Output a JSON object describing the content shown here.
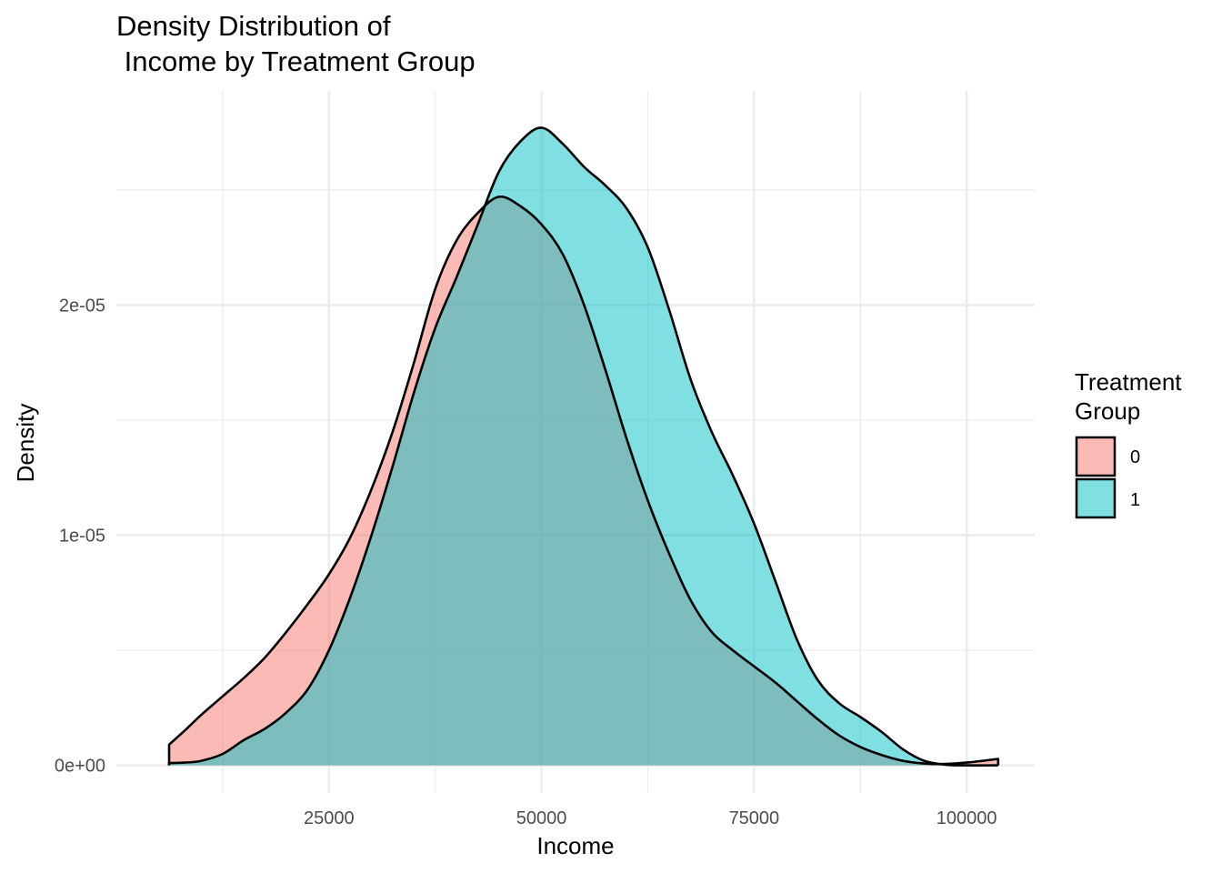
{
  "chart_data": {
    "type": "area",
    "title_lines": [
      "Density Distribution of",
      " Income by Treatment Group"
    ],
    "xlabel": "Income",
    "ylabel": "Density",
    "xlim": [
      0,
      108000
    ],
    "ylim": [
      -1.2e-06,
      2.93e-05
    ],
    "x_ticks": [
      {
        "value": 25000,
        "label": "25000"
      },
      {
        "value": 50000,
        "label": "50000"
      },
      {
        "value": 75000,
        "label": "75000"
      },
      {
        "value": 100000,
        "label": "100000"
      }
    ],
    "y_ticks": [
      {
        "value": 0,
        "label": "0e+00"
      },
      {
        "value": 1e-05,
        "label": "1e-05"
      },
      {
        "value": 2e-05,
        "label": "2e-05"
      }
    ],
    "grid": true,
    "legend": {
      "title_lines": [
        "Treatment",
        "Group"
      ],
      "placement": "right",
      "entries": [
        {
          "label": "0",
          "color": "#F8766D"
        },
        {
          "label": "1",
          "color": "#00BFC4"
        }
      ]
    },
    "fill_alpha": 0.5,
    "series": [
      {
        "name": "0",
        "color": "#F8766D",
        "points": [
          [
            6200,
            9e-07
          ],
          [
            8000,
            1.5e-06
          ],
          [
            10000,
            2.2e-06
          ],
          [
            12500,
            3e-06
          ],
          [
            15000,
            3.8e-06
          ],
          [
            17500,
            4.7e-06
          ],
          [
            20000,
            5.8e-06
          ],
          [
            22500,
            7e-06
          ],
          [
            25000,
            8.3e-06
          ],
          [
            27500,
            9.9e-06
          ],
          [
            30000,
            1.2e-05
          ],
          [
            32500,
            1.45e-05
          ],
          [
            35000,
            1.75e-05
          ],
          [
            37500,
            2.07e-05
          ],
          [
            40000,
            2.28e-05
          ],
          [
            42500,
            2.4e-05
          ],
          [
            45000,
            2.47e-05
          ],
          [
            47500,
            2.43e-05
          ],
          [
            50000,
            2.35e-05
          ],
          [
            52500,
            2.22e-05
          ],
          [
            55000,
            2e-05
          ],
          [
            57500,
            1.72e-05
          ],
          [
            60000,
            1.42e-05
          ],
          [
            62500,
            1.15e-05
          ],
          [
            65000,
            9.2e-06
          ],
          [
            67500,
            7.2e-06
          ],
          [
            70000,
            5.8e-06
          ],
          [
            72500,
            5e-06
          ],
          [
            75000,
            4.3e-06
          ],
          [
            77500,
            3.6e-06
          ],
          [
            80000,
            2.8e-06
          ],
          [
            82500,
            2e-06
          ],
          [
            85000,
            1.3e-06
          ],
          [
            87500,
            8e-07
          ],
          [
            90000,
            4.5e-07
          ],
          [
            92500,
            2e-07
          ],
          [
            95000,
            8e-08
          ],
          [
            97500,
            6e-08
          ],
          [
            100000,
            1.2e-07
          ],
          [
            103700,
            2.8e-07
          ]
        ]
      },
      {
        "name": "1",
        "color": "#00BFC4",
        "points": [
          [
            6200,
            1e-07
          ],
          [
            8000,
            1.2e-07
          ],
          [
            10000,
            2e-07
          ],
          [
            12500,
            5e-07
          ],
          [
            15000,
            1.1e-06
          ],
          [
            17500,
            1.6e-06
          ],
          [
            20000,
            2.3e-06
          ],
          [
            22500,
            3.3e-06
          ],
          [
            25000,
            5e-06
          ],
          [
            27500,
            7.3e-06
          ],
          [
            30000,
            1e-05
          ],
          [
            32500,
            1.3e-05
          ],
          [
            35000,
            1.62e-05
          ],
          [
            37500,
            1.9e-05
          ],
          [
            40000,
            2.12e-05
          ],
          [
            42500,
            2.35e-05
          ],
          [
            45000,
            2.58e-05
          ],
          [
            47500,
            2.71e-05
          ],
          [
            50000,
            2.77e-05
          ],
          [
            52500,
            2.7e-05
          ],
          [
            55000,
            2.6e-05
          ],
          [
            57500,
            2.52e-05
          ],
          [
            60000,
            2.42e-05
          ],
          [
            62500,
            2.25e-05
          ],
          [
            65000,
            1.98e-05
          ],
          [
            67500,
            1.68e-05
          ],
          [
            70000,
            1.45e-05
          ],
          [
            72500,
            1.26e-05
          ],
          [
            75000,
            1.05e-05
          ],
          [
            77500,
            8e-06
          ],
          [
            80000,
            5.5e-06
          ],
          [
            82500,
            3.7e-06
          ],
          [
            85000,
            2.7e-06
          ],
          [
            87500,
            2.1e-06
          ],
          [
            90000,
            1.45e-06
          ],
          [
            92500,
            7e-07
          ],
          [
            95000,
            2e-07
          ],
          [
            97500,
            3e-08
          ],
          [
            100000,
            0.0
          ],
          [
            103700,
            0.0
          ]
        ]
      }
    ]
  }
}
